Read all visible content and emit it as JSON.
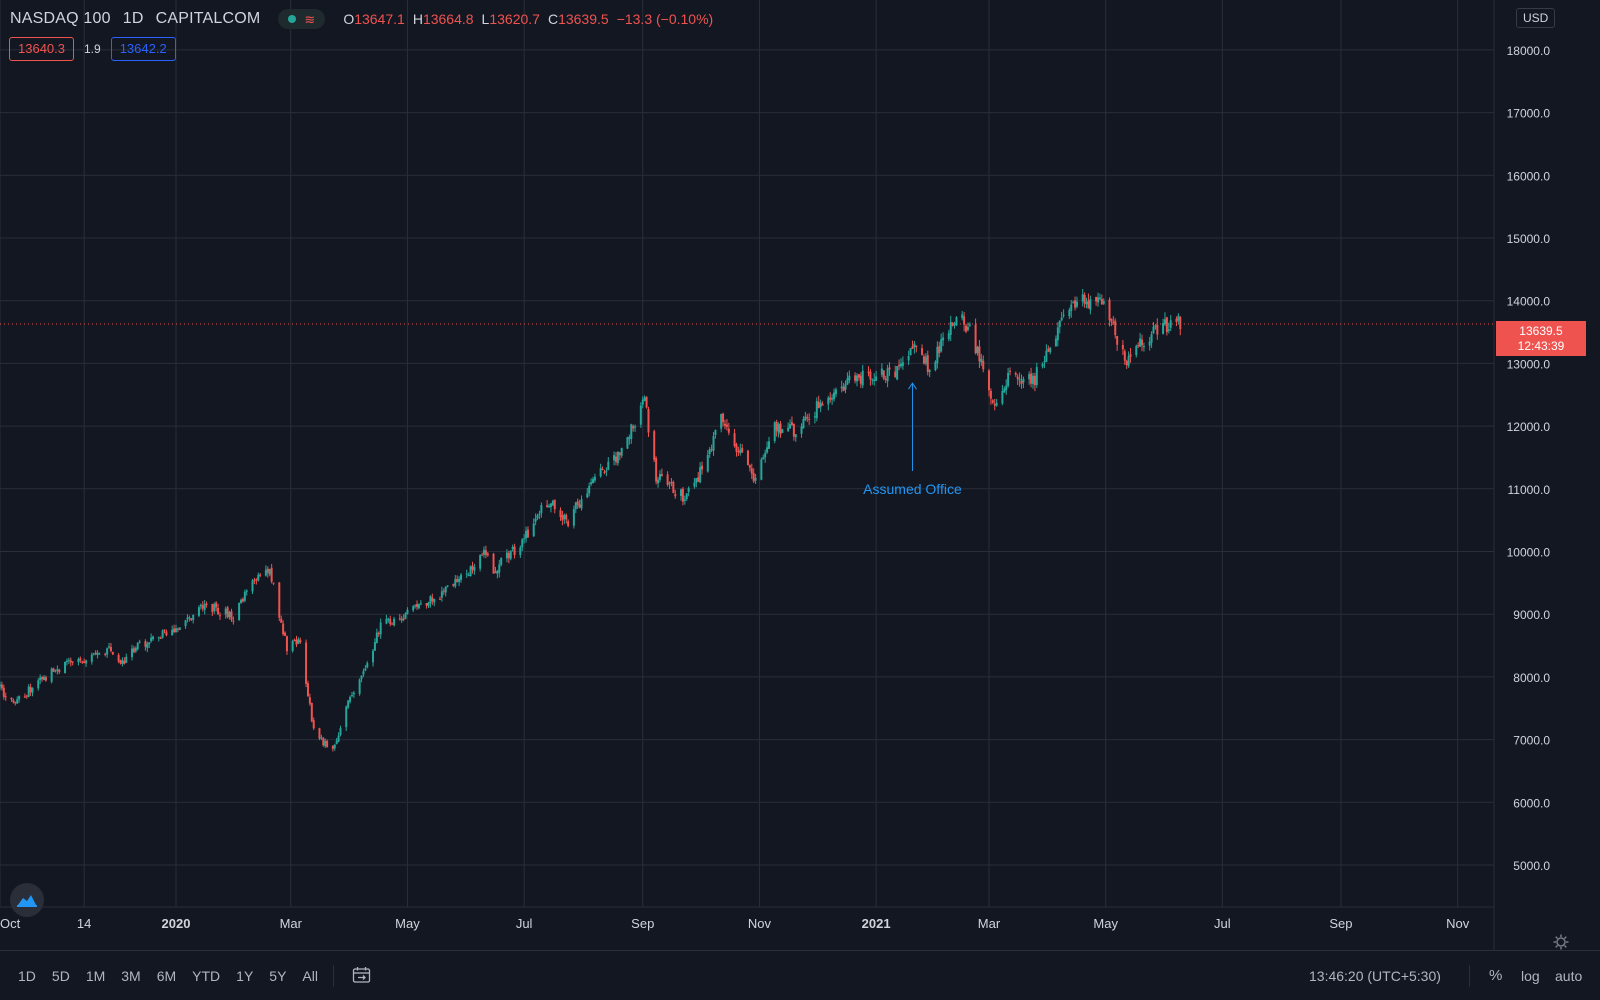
{
  "header": {
    "symbol": "NASDAQ 100",
    "interval": "1D",
    "exchange": "CAPITALCOM",
    "ohlc": {
      "o_label": "O",
      "o": "13647.1",
      "h_label": "H",
      "h": "13664.8",
      "l_label": "L",
      "l": "13620.7",
      "c_label": "C",
      "c": "13639.5",
      "change": "−13.3 (−0.10%)"
    }
  },
  "quotes": {
    "bid": "13640.3",
    "spread": "1.9",
    "ask": "13642.2"
  },
  "currency_button": "USD",
  "last_price": {
    "value": "13639.5",
    "countdown": "12:43:39"
  },
  "annotation": {
    "text": "Assumed Office"
  },
  "toolbar": {
    "ranges": [
      "1D",
      "5D",
      "1M",
      "3M",
      "6M",
      "YTD",
      "1Y",
      "5Y",
      "All"
    ],
    "clock": "13:46:20 (UTC+5:30)",
    "percent_label": "%",
    "log_label": "log",
    "auto_label": "auto"
  },
  "colors": {
    "background": "#131722",
    "grid": "#2a2e39",
    "up": "#26a69a",
    "down": "#ef5350",
    "annotation": "#2196f3",
    "text": "#d1d4dc"
  },
  "chart_data": {
    "type": "candlestick",
    "title": "NASDAQ 100 · 1D · CAPITALCOM",
    "x_ticks": [
      "Oct",
      "14",
      "2020",
      "Mar",
      "May",
      "Jul",
      "Sep",
      "Nov",
      "2021",
      "Mar",
      "May",
      "Jul",
      "Sep",
      "Nov"
    ],
    "y_ticks": [
      "5000.0",
      "6000.0",
      "7000.0",
      "8000.0",
      "9000.0",
      "10000.0",
      "11000.0",
      "12000.0",
      "13000.0",
      "14000.0",
      "15000.0",
      "16000.0",
      "17000.0",
      "18000.0"
    ],
    "ylim": [
      4300,
      18800
    ],
    "xlim": [
      "2019-10-01",
      "2021-11-20"
    ],
    "last_price_line": 13639.5,
    "annotation": {
      "date": "2021-01-20",
      "value": 12700,
      "label": "Assumed Office"
    },
    "price_path": [
      [
        "2019-10-01",
        7820
      ],
      [
        "2019-10-08",
        7550
      ],
      [
        "2019-10-21",
        7930
      ],
      [
        "2019-11-04",
        8200
      ],
      [
        "2019-11-18",
        8300
      ],
      [
        "2019-11-27",
        8420
      ],
      [
        "2019-12-03",
        8200
      ],
      [
        "2019-12-13",
        8500
      ],
      [
        "2019-12-31",
        8750
      ],
      [
        "2020-01-17",
        9150
      ],
      [
        "2020-01-31",
        8950
      ],
      [
        "2020-02-10",
        9500
      ],
      [
        "2020-02-19",
        9720
      ],
      [
        "2020-02-28",
        8450
      ],
      [
        "2020-03-06",
        8600
      ],
      [
        "2020-03-12",
        7300
      ],
      [
        "2020-03-16",
        7000
      ],
      [
        "2020-03-20",
        6900
      ],
      [
        "2020-03-23",
        6800
      ],
      [
        "2020-03-31",
        7650
      ],
      [
        "2020-04-06",
        7900
      ],
      [
        "2020-04-17",
        8800
      ],
      [
        "2020-04-30",
        9000
      ],
      [
        "2020-05-15",
        9250
      ],
      [
        "2020-05-29",
        9550
      ],
      [
        "2020-06-10",
        10000
      ],
      [
        "2020-06-15",
        9700
      ],
      [
        "2020-06-30",
        10150
      ],
      [
        "2020-07-13",
        10800
      ],
      [
        "2020-07-24",
        10500
      ],
      [
        "2020-08-05",
        11100
      ],
      [
        "2020-08-19",
        11500
      ],
      [
        "2020-09-02",
        12400
      ],
      [
        "2020-09-08",
        11200
      ],
      [
        "2020-09-23",
        10850
      ],
      [
        "2020-10-02",
        11300
      ],
      [
        "2020-10-12",
        12100
      ],
      [
        "2020-10-30",
        11100
      ],
      [
        "2020-11-09",
        12000
      ],
      [
        "2020-11-20",
        11900
      ],
      [
        "2020-12-01",
        12300
      ],
      [
        "2020-12-18",
        12700
      ],
      [
        "2020-12-31",
        12850
      ],
      [
        "2021-01-11",
        12800
      ],
      [
        "2021-01-22",
        13300
      ],
      [
        "2021-01-29",
        12900
      ],
      [
        "2021-02-12",
        13800
      ],
      [
        "2021-02-19",
        13500
      ],
      [
        "2021-03-04",
        12350
      ],
      [
        "2021-03-12",
        12800
      ],
      [
        "2021-03-24",
        12700
      ],
      [
        "2021-04-05",
        13500
      ],
      [
        "2021-04-16",
        14000
      ],
      [
        "2021-04-29",
        13950
      ],
      [
        "2021-05-12",
        13050
      ],
      [
        "2021-05-20",
        13350
      ],
      [
        "2021-06-01",
        13600
      ],
      [
        "2021-06-08",
        13650
      ],
      [
        "2021-06-09",
        13639.5
      ]
    ]
  }
}
